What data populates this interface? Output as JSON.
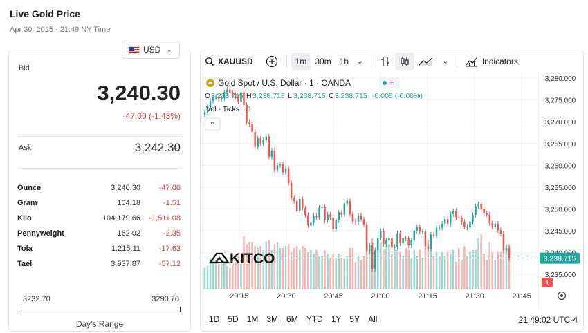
{
  "header": {
    "title": "Live Gold Price",
    "subtitle": "Apr 30, 2025 - 21:49 NY Time"
  },
  "currency": {
    "selected": "USD",
    "icon": "us-flag-icon"
  },
  "bid": {
    "label": "Bid",
    "value": "3,240.30",
    "change": "-47.00 (-1.43%)"
  },
  "ask": {
    "label": "Ask",
    "value": "3,242.30"
  },
  "units": [
    {
      "name": "Ounce",
      "price": "3,240.30",
      "change": "-47.00"
    },
    {
      "name": "Gram",
      "price": "104.18",
      "change": "-1.51"
    },
    {
      "name": "Kilo",
      "price": "104,179.66",
      "change": "-1,511.08"
    },
    {
      "name": "Pennyweight",
      "price": "162.02",
      "change": "-2.35"
    },
    {
      "name": "Tola",
      "price": "1,215.11",
      "change": "-17.63"
    },
    {
      "name": "Tael",
      "price": "3,937.87",
      "change": "-57.12"
    }
  ],
  "day_range": {
    "low": "3232.70",
    "high": "3290.70",
    "label": "Day's Range"
  },
  "toolbar": {
    "symbol": "XAUUSD",
    "intervals": [
      "1m",
      "30m",
      "1h"
    ],
    "active_interval": "1m",
    "indicators_label": "Indicators"
  },
  "legend": {
    "title": "Gold Spot / U.S. Dollar · 1 · OANDA",
    "o_label": "O",
    "o": "3,238.715",
    "h_label": "H",
    "h": "3,238.715",
    "l_label": "L",
    "l": "3,238.715",
    "c_label": "C",
    "c": "3,238.715",
    "change": "-0.005 (-0.00%)",
    "vol_label": "Vol · Ticks",
    "vol_value": "1",
    "approx_symbol": "≈"
  },
  "watermark": "KITCO",
  "last_price_tag": "3,238.715",
  "last_volume_tag": "1",
  "bottom": {
    "ranges": [
      "1D",
      "5D",
      "1M",
      "3M",
      "6M",
      "YTD",
      "1Y",
      "5Y",
      "All"
    ],
    "clock": "21:49:02 UTC-4"
  },
  "colors": {
    "up": "#26a69a",
    "down": "#ef5350",
    "brand": "#d4a017"
  },
  "chart_data": {
    "type": "candlestick",
    "y_ticks": [
      "3,280.000",
      "3,275.000",
      "3,270.000",
      "3,265.000",
      "3,260.000",
      "3,255.000",
      "3,250.000",
      "3,245.000",
      "3,240.000",
      "3,235.000"
    ],
    "x_ticks": [
      "20:15",
      "20:30",
      "20:45",
      "21:00",
      "21:15",
      "21:30",
      "21:45"
    ],
    "ylim": [
      3231.5,
      3281.3
    ],
    "x_range_minutes": [
      0,
      97
    ],
    "x_tick_minutes": [
      11,
      26,
      41,
      56,
      71,
      86,
      101
    ],
    "close": [
      3272.2,
      3273.4,
      3274.8,
      3275.6,
      3275.8,
      3275.2,
      3275.4,
      3276.8,
      3277.4,
      3276.7,
      3276.2,
      3275.7,
      3274.6,
      3276.8,
      3273.9,
      3270.0,
      3269.4,
      3267.7,
      3264.2,
      3266.2,
      3265.0,
      3265.8,
      3266.6,
      3262.0,
      3263.4,
      3258.9,
      3260.0,
      3260.2,
      3258.4,
      3259.3,
      3255.9,
      3252.5,
      3251.8,
      3249.5,
      3252.3,
      3250.2,
      3248.6,
      3246.2,
      3246.8,
      3248.4,
      3248.1,
      3250.3,
      3250.4,
      3247.4,
      3248.7,
      3248.0,
      3245.3,
      3247.4,
      3249.2,
      3248.7,
      3251.2,
      3251.8,
      3248.8,
      3247.1,
      3247.0,
      3248.5,
      3247.6,
      3246.4,
      3240.2,
      3241.6,
      3236.2,
      3240.5,
      3243.4,
      3244.9,
      3241.9,
      3242.8,
      3243.3,
      3241.1,
      3241.3,
      3244.4,
      3242.1,
      3243.3,
      3243.2,
      3241.6,
      3242.8,
      3245.0,
      3245.8,
      3244.8,
      3244.8,
      3241.4,
      3240.8,
      3244.1,
      3243.8,
      3245.6,
      3245.7,
      3246.6,
      3247.7,
      3246.6,
      3248.8,
      3249.5,
      3248.1,
      3248.0,
      3247.0,
      3245.9,
      3245.7,
      3247.1,
      3248.6,
      3250.6,
      3251.1,
      3249.9,
      3249.0,
      3248.7,
      3246.7,
      3245.9,
      3246.6,
      3245.1,
      3244.3,
      3240.5,
      3241.0,
      3238.7
    ],
    "volume": [
      11,
      12,
      16,
      16,
      15,
      13,
      13,
      15,
      12,
      11,
      13,
      14,
      17,
      15,
      27,
      23,
      24,
      24,
      22,
      21,
      22,
      20,
      24,
      25,
      20,
      23,
      24,
      21,
      21,
      22,
      23,
      19,
      21,
      22,
      20,
      22,
      21,
      19,
      20,
      18,
      20,
      17,
      17,
      20,
      18,
      16,
      18,
      16,
      18,
      16,
      16,
      17,
      21,
      21,
      14,
      17,
      15,
      17,
      24,
      22,
      26,
      19,
      21,
      24,
      20,
      22,
      23,
      18,
      20,
      20,
      19,
      17,
      21,
      20,
      16,
      20,
      17,
      20,
      16,
      21,
      25,
      23,
      17,
      19,
      17,
      19,
      17,
      19,
      18,
      20,
      14,
      21,
      15,
      22,
      17,
      19,
      20,
      20,
      26,
      28,
      18,
      15,
      24,
      19,
      15,
      19,
      19,
      21,
      23,
      23
    ]
  }
}
